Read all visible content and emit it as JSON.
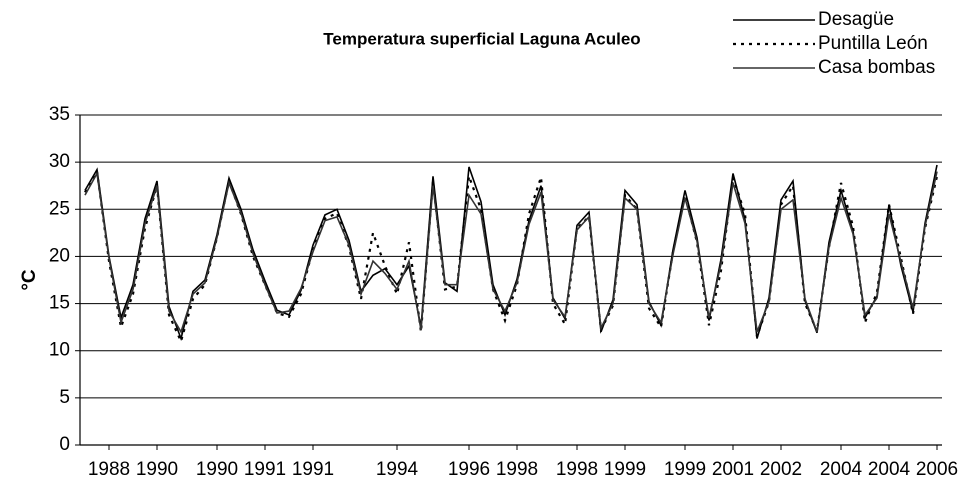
{
  "chart_data": {
    "type": "line",
    "title": "Temperatura superficial Laguna Aculeo",
    "y_label": "°C",
    "categories": [
      null,
      null,
      "1988",
      null,
      null,
      null,
      "1990",
      null,
      null,
      null,
      null,
      "1990",
      null,
      null,
      null,
      "1991",
      null,
      null,
      null,
      "1991",
      null,
      null,
      null,
      null,
      null,
      null,
      "1994",
      null,
      null,
      null,
      null,
      null,
      "1996",
      null,
      null,
      null,
      "1998",
      null,
      null,
      null,
      null,
      "1998",
      null,
      null,
      null,
      "1999",
      null,
      null,
      null,
      null,
      "1999",
      null,
      null,
      null,
      "2001",
      null,
      null,
      null,
      "2002",
      null,
      null,
      null,
      null,
      "2004",
      null,
      null,
      null,
      "2004",
      null,
      null,
      null,
      "2006"
    ],
    "series": [
      {
        "name": "Desagüe",
        "color": "#000000",
        "linestyle": "solid",
        "values": [
          27,
          29.2,
          20,
          13.5,
          17,
          24,
          28,
          14.7,
          11.3,
          16.3,
          17.5,
          22.3,
          28.3,
          25,
          20.7,
          17.4,
          14.3,
          13.8,
          16.4,
          21.2,
          24.4,
          25,
          21.7,
          16.3,
          18,
          18.7,
          17,
          19,
          12.5,
          28.5,
          17.2,
          16.3,
          29.5,
          25.8,
          17,
          13.8,
          17.6,
          23.8,
          27.5,
          15.6,
          13.4,
          23.3,
          24.7,
          12,
          15.4,
          27,
          25.5,
          15.2,
          12.7,
          20.7,
          27,
          22,
          13.2,
          19.7,
          28.8,
          23.9,
          11.3,
          15.6,
          26,
          28,
          15.3,
          11.9,
          21.5,
          27,
          22.7,
          13.5,
          15.8,
          25.5,
          19,
          14.1,
          23.5,
          29.7
        ]
      },
      {
        "name": "Puntilla León",
        "color": "#000000",
        "linestyle": "dotted",
        "values": [
          26.8,
          29,
          19.5,
          12.5,
          16,
          23,
          27.5,
          13.8,
          11,
          15.5,
          17,
          22,
          28,
          24.5,
          20,
          17,
          14,
          13.6,
          16,
          20.8,
          24,
          24.6,
          21,
          15.5,
          22.5,
          19,
          16,
          21.5,
          12,
          28,
          16.5,
          16.8,
          28.5,
          25,
          16.5,
          13.2,
          17,
          24.5,
          28.4,
          15,
          12.8,
          23,
          24.2,
          12.2,
          14.8,
          26.5,
          25,
          14.5,
          12.5,
          20.5,
          26.5,
          21.5,
          12.7,
          18.5,
          28.4,
          24.5,
          11.5,
          15.2,
          25.5,
          27.5,
          15,
          12.1,
          21,
          27.8,
          23.2,
          13,
          16.2,
          25.5,
          19.8,
          13.9,
          23,
          28.5
        ]
      },
      {
        "name": "Casa bombas",
        "color": "#333333",
        "linestyle": "solid",
        "values": [
          26.5,
          28.8,
          19.8,
          13,
          16.5,
          23.5,
          27.5,
          14.2,
          12,
          16,
          17.2,
          22,
          27.8,
          24.6,
          20.3,
          17,
          14,
          14.2,
          16.6,
          20.5,
          23.8,
          24.2,
          21.2,
          16,
          19.5,
          18.2,
          16.5,
          19.5,
          12.2,
          27.5,
          17,
          17,
          26.5,
          24.5,
          16.5,
          14.2,
          17.2,
          23.4,
          26.8,
          15.4,
          13.6,
          22.8,
          24.2,
          12.4,
          15,
          26.2,
          25,
          15,
          13,
          20.2,
          26.2,
          21.6,
          13.5,
          19.2,
          27.8,
          23.5,
          12,
          15.2,
          25,
          26,
          15.5,
          12,
          21,
          26.2,
          22.4,
          13.8,
          15.6,
          24.5,
          19.4,
          14.5,
          23.2,
          29
        ]
      }
    ],
    "ylim": [
      0,
      35
    ],
    "yticks": [
      0,
      5,
      10,
      15,
      20,
      25,
      30,
      35
    ],
    "grid": true,
    "legend": "upper right"
  }
}
